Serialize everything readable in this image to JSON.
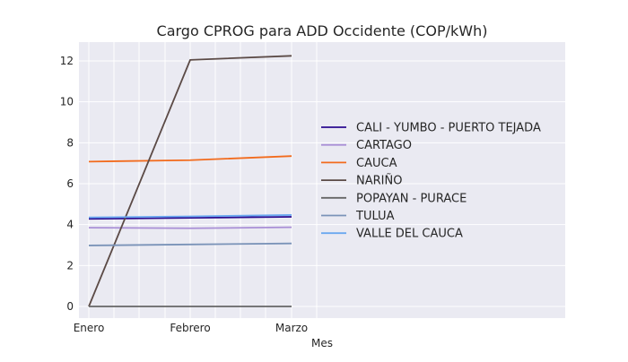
{
  "chart_data": {
    "type": "line",
    "title": "Cargo CPROG para ADD Occidente (COP/kWh)",
    "xlabel": "Mes",
    "ylabel": "",
    "categories": [
      "Enero",
      "Febrero",
      "Marzo"
    ],
    "ylim": [
      -0.6,
      12.9
    ],
    "yticks": [
      0,
      2,
      4,
      6,
      8,
      10,
      12
    ],
    "grid": true,
    "legend_position": "right",
    "colors": {
      "plot_background": "#eaeaf2",
      "grid": "#ffffff",
      "text": "#262626"
    },
    "series": [
      {
        "name": "CALI - YUMBO - PUERTO TEJADA",
        "color": "#2a0a8f",
        "values": [
          4.28,
          4.33,
          4.38
        ]
      },
      {
        "name": "CARTAGO",
        "color": "#a98fd6",
        "values": [
          3.85,
          3.82,
          3.87
        ]
      },
      {
        "name": "CAUCA",
        "color": "#f26b1d",
        "values": [
          7.08,
          7.15,
          7.35
        ]
      },
      {
        "name": "NARIÑO",
        "color": "#5b4a46",
        "values": [
          0.0,
          12.05,
          12.25
        ]
      },
      {
        "name": "POPAYAN - PURACE",
        "color": "#666666",
        "values": [
          0.0,
          0.0,
          0.0
        ]
      },
      {
        "name": "TULUA",
        "color": "#7a93b8",
        "values": [
          2.98,
          3.03,
          3.08
        ]
      },
      {
        "name": "VALLE DEL CAUCA",
        "color": "#6aa8f0",
        "values": [
          4.35,
          4.4,
          4.47
        ]
      }
    ]
  }
}
